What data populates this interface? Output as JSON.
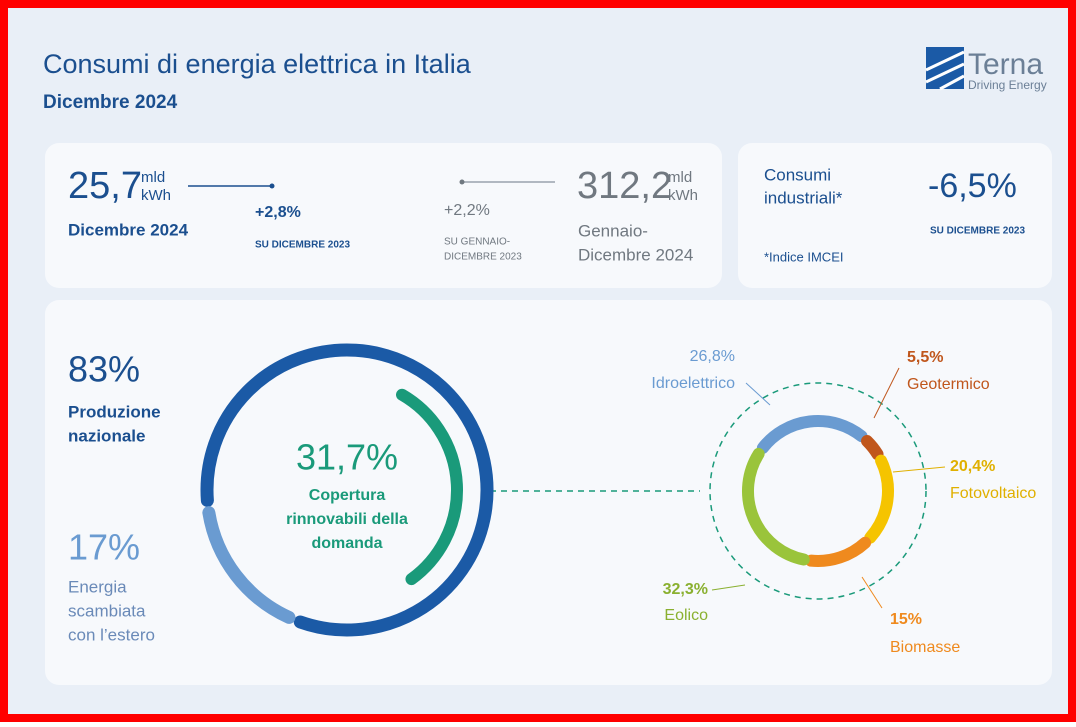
{
  "header": {
    "title": "Consumi di energia elettrica in Italia",
    "subtitle": "Dicembre 2024",
    "logo": "Terna",
    "tagline": "Driving Energy"
  },
  "summary": {
    "month": {
      "value": "25,7",
      "unit_top": "mld",
      "unit_bottom": "kWh",
      "period": "Dicembre 2024",
      "change": "+2,8%",
      "compare": "SU DICEMBRE 2023"
    },
    "year": {
      "value": "312,2",
      "unit_top": "mld",
      "unit_bottom": "kWh",
      "period": [
        "Gennaio-",
        "Dicembre 2024"
      ],
      "change": "+2,2%",
      "compare": [
        "SU GENNAIO-",
        "DICEMBRE 2023"
      ]
    },
    "industrial": {
      "label": [
        "Consumi",
        "industriali*"
      ],
      "change": "-6,5%",
      "compare": "SU DICEMBRE 2023",
      "note": "*Indice IMCEI"
    }
  },
  "mix": {
    "values": [
      83,
      17
    ],
    "value_labels": [
      "83%",
      "17%"
    ],
    "names": [
      [
        "Produzione",
        "nazionale"
      ],
      [
        "Energia",
        "scambiata",
        "con l’estero"
      ]
    ],
    "colors": [
      "#1b5aa6",
      "#6a9bd1"
    ]
  },
  "renewables": {
    "value": 31.7,
    "value_label": "31,7%",
    "caption": [
      "Copertura",
      "rinnovabili della",
      "domanda"
    ],
    "color": "#1a9a7a"
  },
  "sources": {
    "names": [
      "Idroelettrico",
      "Geotermico",
      "Fotovoltaico",
      "Biomasse",
      "Eolico"
    ],
    "values": [
      26.8,
      5.5,
      20.4,
      15,
      32.3
    ],
    "value_labels": [
      "26,8%",
      "5,5%",
      "20,4%",
      "15%",
      "32,3%"
    ],
    "colors": [
      "#6a9bd1",
      "#c0561c",
      "#f5c400",
      "#ef8a1e",
      "#9ac43b"
    ]
  }
}
